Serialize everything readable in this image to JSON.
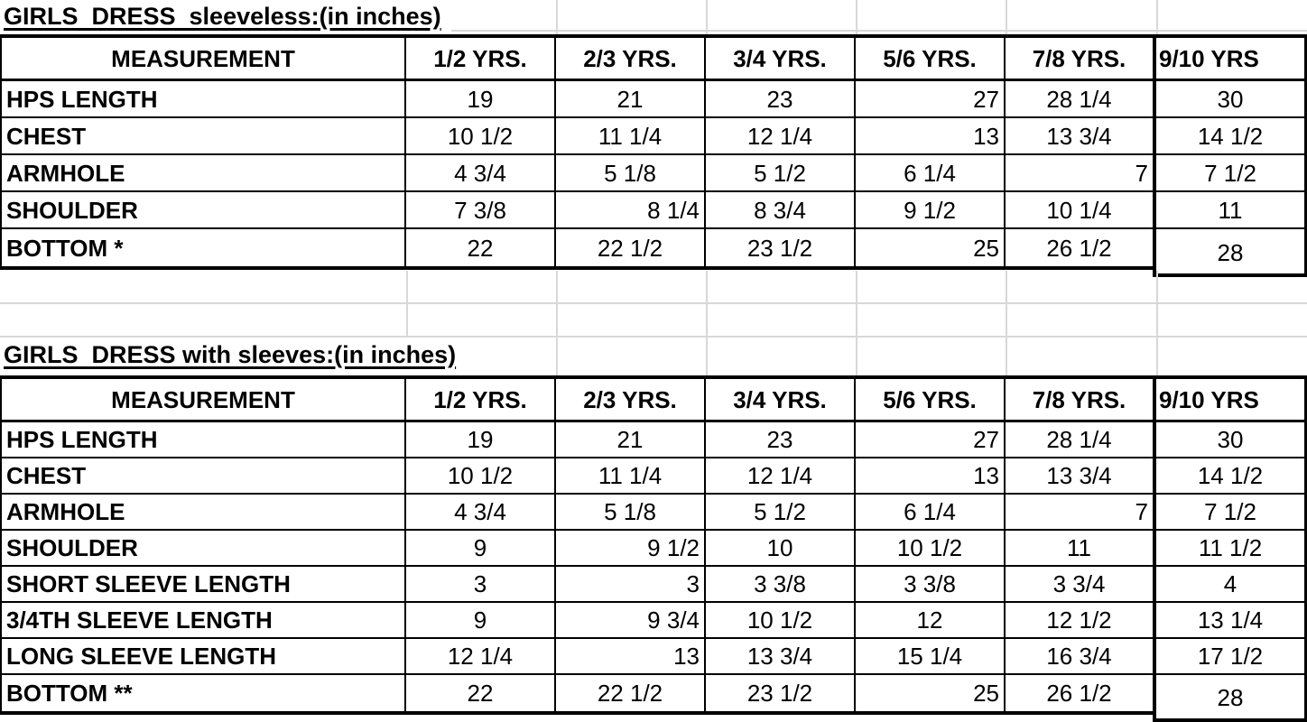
{
  "page": {
    "background": "#ffffff",
    "gridline_color": "#d8d8d8",
    "border_color": "#000000",
    "text_color": "#000000"
  },
  "tables": [
    {
      "title": "GIRLS  DRESS  sleeveless:(in inches)",
      "columns": [
        "MEASUREMENT",
        "1/2 YRS.",
        "2/3 YRS.",
        "3/4 YRS.",
        "5/6 YRS.",
        "7/8 YRS.",
        "9/10 YRS"
      ],
      "rows": [
        {
          "label": "HPS LENGTH",
          "values": [
            "19",
            "21",
            "23",
            "27",
            "28 1/4",
            "30"
          ],
          "align": [
            "c",
            "c",
            "c",
            "r",
            "c",
            "c"
          ]
        },
        {
          "label": "CHEST",
          "values": [
            "10 1/2",
            "11 1/4",
            "12 1/4",
            "13",
            "13 3/4",
            "14 1/2"
          ],
          "align": [
            "c",
            "c",
            "c",
            "r",
            "c",
            "c"
          ]
        },
        {
          "label": "ARMHOLE",
          "values": [
            "4 3/4",
            "5 1/8",
            "5 1/2",
            "6 1/4",
            "7",
            "7 1/2"
          ],
          "align": [
            "c",
            "c",
            "c",
            "c",
            "r",
            "c"
          ]
        },
        {
          "label": "SHOULDER",
          "values": [
            "7 3/8",
            "8 1/4",
            "8 3/4",
            "9 1/2",
            "10 1/4",
            "11"
          ],
          "align": [
            "c",
            "r",
            "c",
            "c",
            "c",
            "c"
          ]
        },
        {
          "label": "BOTTOM *",
          "values": [
            "22",
            "22 1/2",
            "23 1/2",
            "25",
            "26 1/2",
            "28"
          ],
          "align": [
            "c",
            "c",
            "c",
            "r",
            "c",
            "c"
          ]
        }
      ]
    },
    {
      "title": "GIRLS  DRESS with sleeves:(in inches)",
      "columns": [
        "MEASUREMENT",
        "1/2 YRS.",
        "2/3 YRS.",
        "3/4 YRS.",
        "5/6 YRS.",
        "7/8 YRS.",
        "9/10 YRS"
      ],
      "rows": [
        {
          "label": "HPS LENGTH",
          "values": [
            "19",
            "21",
            "23",
            "27",
            "28 1/4",
            "30"
          ],
          "align": [
            "c",
            "c",
            "c",
            "r",
            "c",
            "c"
          ]
        },
        {
          "label": "CHEST",
          "values": [
            "10 1/2",
            "11 1/4",
            "12 1/4",
            "13",
            "13 3/4",
            "14 1/2"
          ],
          "align": [
            "c",
            "c",
            "c",
            "r",
            "c",
            "c"
          ]
        },
        {
          "label": "ARMHOLE",
          "values": [
            "4 3/4",
            "5 1/8",
            "5 1/2",
            "6 1/4",
            "7",
            "7 1/2"
          ],
          "align": [
            "c",
            "c",
            "c",
            "c",
            "r",
            "c"
          ]
        },
        {
          "label": "SHOULDER",
          "values": [
            "9",
            "9 1/2",
            "10",
            "10 1/2",
            "11",
            "11 1/2"
          ],
          "align": [
            "c",
            "r",
            "c",
            "c",
            "c",
            "c"
          ]
        },
        {
          "label": "SHORT SLEEVE LENGTH",
          "values": [
            "3",
            "3",
            "3 3/8",
            "3 3/8",
            "3 3/4",
            "4"
          ],
          "align": [
            "c",
            "r",
            "c",
            "c",
            "c",
            "c"
          ]
        },
        {
          "label": "3/4TH SLEEVE LENGTH",
          "values": [
            "9",
            "9 3/4",
            "10 1/2",
            "12",
            "12 1/2",
            "13 1/4"
          ],
          "align": [
            "c",
            "r",
            "c",
            "c",
            "c",
            "c"
          ]
        },
        {
          "label": "LONG SLEEVE LENGTH",
          "values": [
            "12 1/4",
            "13",
            "13 3/4",
            "15 1/4",
            "16 3/4",
            "17 1/2"
          ],
          "align": [
            "c",
            "r",
            "c",
            "c",
            "c",
            "c"
          ]
        },
        {
          "label": "BOTTOM **",
          "values": [
            "22",
            "22 1/2",
            "23 1/2",
            "25",
            "26 1/2",
            "28"
          ],
          "align": [
            "c",
            "c",
            "c",
            "r",
            "c",
            "c"
          ]
        }
      ]
    }
  ]
}
